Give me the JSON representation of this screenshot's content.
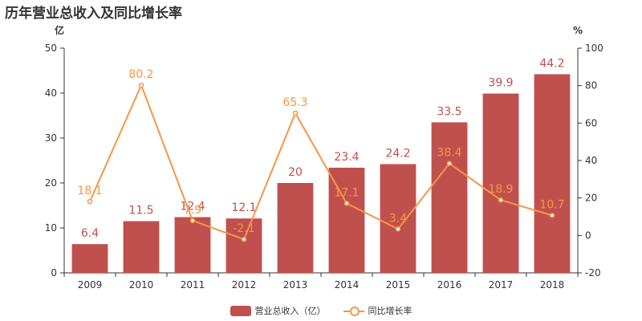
{
  "chart_data": {
    "type": "bar",
    "title": "历年营业总收入及同比增长率",
    "categories": [
      "2009",
      "2010",
      "2011",
      "2012",
      "2013",
      "2014",
      "2015",
      "2016",
      "2017",
      "2018"
    ],
    "y_left": {
      "unit": "亿",
      "ylim": [
        0,
        50
      ],
      "ticks": [
        0,
        10,
        20,
        30,
        40,
        50
      ]
    },
    "y_right": {
      "unit": "%",
      "ylim": [
        -20,
        100
      ],
      "ticks": [
        -20,
        0,
        20,
        40,
        60,
        80,
        100
      ]
    },
    "grid": false,
    "legend_position": "bottom-center",
    "series": [
      {
        "name": "营业总收入（亿）",
        "type": "bar",
        "axis": "left",
        "color": "#c0504d",
        "values": [
          6.4,
          11.5,
          12.4,
          12.1,
          20,
          23.4,
          24.2,
          33.5,
          39.9,
          44.2
        ],
        "labels": [
          "6.4",
          "11.5",
          "12.4",
          "12.1",
          "20",
          "23.4",
          "24.2",
          "33.5",
          "39.9",
          "44.2"
        ]
      },
      {
        "name": "同比增长率",
        "type": "line",
        "axis": "right",
        "color": "#f79646",
        "values": [
          18.1,
          80.2,
          7.9,
          -2.1,
          65.3,
          17.1,
          3.4,
          38.4,
          18.9,
          10.7
        ],
        "labels": [
          "18.1",
          "80.2",
          "7.9",
          "-2.1",
          "65.3",
          "17.1",
          "3.4",
          "38.4",
          "18.9",
          "10.7"
        ]
      }
    ]
  }
}
